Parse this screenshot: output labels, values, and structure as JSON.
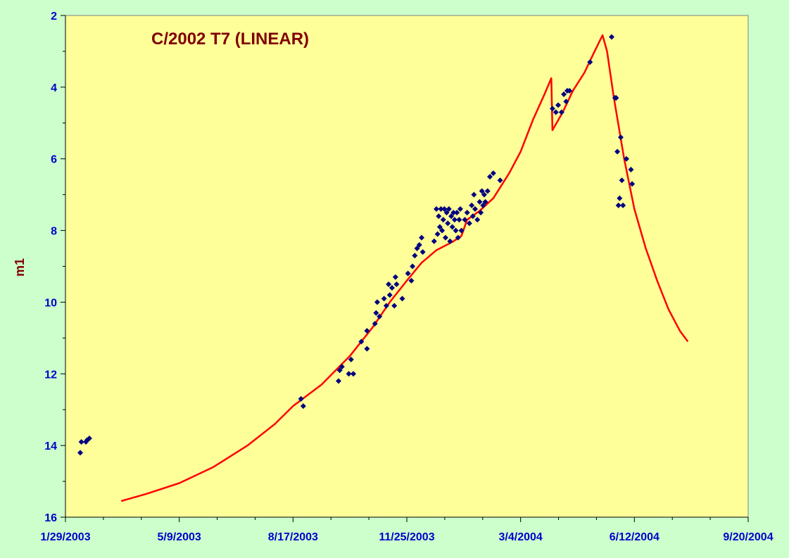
{
  "chart_data": {
    "type": "scatter",
    "title": "C/2002 T7 (LINEAR)",
    "xlabel": "",
    "ylabel": "m1",
    "x_range": [
      "2003-01-29",
      "2004-09-20"
    ],
    "x_ticks": [
      "1/29/2003",
      "5/9/2003",
      "8/17/2003",
      "11/25/2003",
      "3/4/2004",
      "6/12/2004",
      "9/20/2004"
    ],
    "x_tick_dates": [
      "2003-01-29",
      "2003-05-09",
      "2003-08-17",
      "2003-11-25",
      "2004-03-04",
      "2004-06-12",
      "2004-09-20"
    ],
    "ylim": [
      16,
      2
    ],
    "y_inverted": true,
    "y_ticks": [
      2,
      4,
      6,
      8,
      10,
      12,
      14,
      16
    ],
    "grid": false,
    "legend": "none",
    "colors": {
      "background": "#ccffcc",
      "plot_area": "#ffff99",
      "points": "#000080",
      "curve": "#ff0000",
      "title": "#800000",
      "ticks": "#0000cc"
    },
    "series": [
      {
        "kind": "observations",
        "marker": "diamond",
        "points": [
          [
            "2003-02-11",
            14.2
          ],
          [
            "2003-02-12",
            13.9
          ],
          [
            "2003-02-16",
            13.9
          ],
          [
            "2003-02-17",
            13.85
          ],
          [
            "2003-02-19",
            13.8
          ],
          [
            "2003-08-24",
            12.7
          ],
          [
            "2003-08-26",
            12.9
          ],
          [
            "2003-09-26",
            12.2
          ],
          [
            "2003-09-27",
            11.9
          ],
          [
            "2003-09-29",
            11.8
          ],
          [
            "2003-10-05",
            12.0
          ],
          [
            "2003-10-07",
            11.6
          ],
          [
            "2003-10-09",
            12.0
          ],
          [
            "2003-10-16",
            11.1
          ],
          [
            "2003-10-21",
            11.3
          ],
          [
            "2003-10-21",
            10.8
          ],
          [
            "2003-10-28",
            10.6
          ],
          [
            "2003-10-29",
            10.3
          ],
          [
            "2003-10-30",
            10.0
          ],
          [
            "2003-11-01",
            10.4
          ],
          [
            "2003-11-05",
            9.9
          ],
          [
            "2003-11-07",
            10.1
          ],
          [
            "2003-11-09",
            9.5
          ],
          [
            "2003-11-10",
            9.8
          ],
          [
            "2003-11-12",
            9.6
          ],
          [
            "2003-11-14",
            10.1
          ],
          [
            "2003-11-15",
            9.3
          ],
          [
            "2003-11-16",
            9.5
          ],
          [
            "2003-11-21",
            9.9
          ],
          [
            "2003-11-26",
            9.2
          ],
          [
            "2003-11-29",
            9.4
          ],
          [
            "2003-11-30",
            9.0
          ],
          [
            "2003-12-02",
            8.7
          ],
          [
            "2003-12-04",
            8.5
          ],
          [
            "2003-12-06",
            8.4
          ],
          [
            "2003-12-08",
            8.2
          ],
          [
            "2003-12-09",
            8.6
          ],
          [
            "2003-12-19",
            8.3
          ],
          [
            "2003-12-21",
            7.4
          ],
          [
            "2003-12-22",
            8.1
          ],
          [
            "2003-12-23",
            7.6
          ],
          [
            "2003-12-24",
            7.9
          ],
          [
            "2003-12-25",
            7.4
          ],
          [
            "2003-12-26",
            8.0
          ],
          [
            "2003-12-27",
            7.7
          ],
          [
            "2003-12-28",
            7.4
          ],
          [
            "2003-12-29",
            8.2
          ],
          [
            "2003-12-30",
            7.5
          ],
          [
            "2003-12-31",
            7.8
          ],
          [
            "2004-01-01",
            7.4
          ],
          [
            "2004-01-02",
            8.3
          ],
          [
            "2004-01-03",
            7.6
          ],
          [
            "2004-01-04",
            7.9
          ],
          [
            "2004-01-05",
            7.5
          ],
          [
            "2004-01-06",
            7.7
          ],
          [
            "2004-01-07",
            8.0
          ],
          [
            "2004-01-08",
            7.5
          ],
          [
            "2004-01-09",
            8.2
          ],
          [
            "2004-01-10",
            7.7
          ],
          [
            "2004-01-11",
            7.4
          ],
          [
            "2004-01-12",
            8.0
          ],
          [
            "2004-01-15",
            7.7
          ],
          [
            "2004-01-17",
            7.5
          ],
          [
            "2004-01-19",
            7.8
          ],
          [
            "2004-01-21",
            7.3
          ],
          [
            "2004-01-22",
            7.6
          ],
          [
            "2004-01-23",
            7.0
          ],
          [
            "2004-01-24",
            7.4
          ],
          [
            "2004-01-26",
            7.7
          ],
          [
            "2004-01-28",
            7.2
          ],
          [
            "2004-01-29",
            7.5
          ],
          [
            "2004-01-30",
            6.9
          ],
          [
            "2004-01-31",
            7.3
          ],
          [
            "2004-02-01",
            7.0
          ],
          [
            "2004-02-02",
            7.2
          ],
          [
            "2004-02-04",
            6.9
          ],
          [
            "2004-02-06",
            6.5
          ],
          [
            "2004-02-09",
            6.4
          ],
          [
            "2004-02-15",
            6.6
          ],
          [
            "2004-04-01",
            4.6
          ],
          [
            "2004-04-04",
            4.7
          ],
          [
            "2004-04-06",
            4.5
          ],
          [
            "2004-04-09",
            4.7
          ],
          [
            "2004-04-11",
            4.2
          ],
          [
            "2004-04-13",
            4.4
          ],
          [
            "2004-04-14",
            4.1
          ],
          [
            "2004-04-16",
            4.1
          ],
          [
            "2004-05-04",
            3.3
          ],
          [
            "2004-05-23",
            2.6
          ],
          [
            "2004-05-26",
            4.3
          ],
          [
            "2004-05-27",
            4.3
          ],
          [
            "2004-05-28",
            5.8
          ],
          [
            "2004-05-29",
            7.3
          ],
          [
            "2004-05-30",
            7.1
          ],
          [
            "2004-05-31",
            5.4
          ],
          [
            "2004-06-01",
            6.6
          ],
          [
            "2004-06-02",
            7.3
          ],
          [
            "2004-06-05",
            6.0
          ],
          [
            "2004-06-09",
            6.3
          ],
          [
            "2004-06-10",
            6.7
          ]
        ]
      },
      {
        "kind": "fitted-curve",
        "points": [
          [
            "2003-03-19",
            15.55
          ],
          [
            "2003-04-10",
            15.35
          ],
          [
            "2003-05-09",
            15.05
          ],
          [
            "2003-06-08",
            14.6
          ],
          [
            "2003-07-08",
            14.0
          ],
          [
            "2003-08-01",
            13.4
          ],
          [
            "2003-08-17",
            12.9
          ],
          [
            "2003-09-11",
            12.3
          ],
          [
            "2003-10-06",
            11.5
          ],
          [
            "2003-10-26",
            10.7
          ],
          [
            "2003-11-10",
            10.0
          ],
          [
            "2003-11-25",
            9.4
          ],
          [
            "2003-12-08",
            8.9
          ],
          [
            "2003-12-21",
            8.55
          ],
          [
            "2004-01-05",
            8.3
          ],
          [
            "2004-01-12",
            8.15
          ],
          [
            "2004-01-17",
            7.7
          ],
          [
            "2004-01-28",
            7.45
          ],
          [
            "2004-02-09",
            7.1
          ],
          [
            "2004-02-23",
            6.4
          ],
          [
            "2004-03-04",
            5.8
          ],
          [
            "2004-03-15",
            4.9
          ],
          [
            "2004-03-25",
            4.2
          ],
          [
            "2004-03-31",
            3.75
          ],
          [
            "2004-04-01",
            5.2
          ],
          [
            "2004-04-10",
            4.7
          ],
          [
            "2004-04-19",
            4.1
          ],
          [
            "2004-04-29",
            3.6
          ],
          [
            "2004-05-08",
            3.0
          ],
          [
            "2004-05-15",
            2.55
          ],
          [
            "2004-05-19",
            3.0
          ],
          [
            "2004-05-25",
            4.3
          ],
          [
            "2004-06-03",
            6.0
          ],
          [
            "2004-06-12",
            7.4
          ],
          [
            "2004-06-22",
            8.5
          ],
          [
            "2004-07-02",
            9.4
          ],
          [
            "2004-07-12",
            10.2
          ],
          [
            "2004-07-22",
            10.8
          ],
          [
            "2004-07-29",
            11.1
          ]
        ]
      }
    ]
  }
}
